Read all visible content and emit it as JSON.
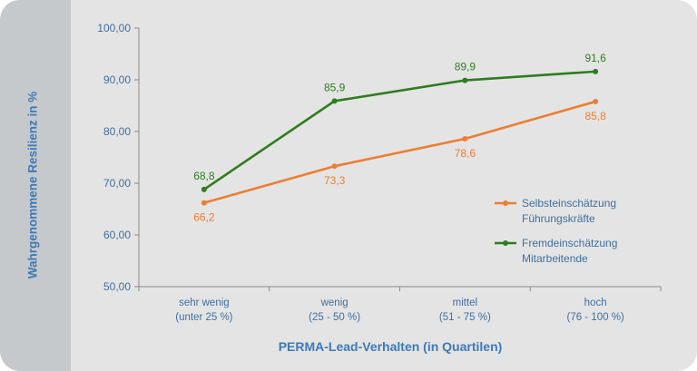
{
  "chart_data": {
    "type": "line",
    "xlabel": "PERMA-Lead-Verhalten (in Quartilen)",
    "ylabel": "Wahrgenommene Resilienz in %",
    "ylim": [
      50,
      100
    ],
    "yticks": [
      "50,00",
      "60,00",
      "70,00",
      "80,00",
      "90,00",
      "100,00"
    ],
    "categories": [
      [
        "sehr wenig",
        "(unter 25 %)"
      ],
      [
        "wenig",
        "(25 - 50 %)"
      ],
      [
        "mittel",
        "(51 - 75 %)"
      ],
      [
        "hoch",
        "(76 - 100 %)"
      ]
    ],
    "series": [
      {
        "name_lines": [
          "Selbsteinschätzung",
          "Führungskräfte"
        ],
        "color": "#ed7d31",
        "values": [
          66.2,
          73.3,
          78.6,
          85.8
        ],
        "labels": [
          "66,2",
          "73,3",
          "78,6",
          "85,8"
        ],
        "label_position": "below"
      },
      {
        "name_lines": [
          "Fremdeinschätzung",
          "Mitarbeitende"
        ],
        "color": "#2e7d1f",
        "values": [
          68.8,
          85.9,
          89.9,
          91.6
        ],
        "labels": [
          "68,8",
          "85,9",
          "89,9",
          "91,6"
        ],
        "label_position": "above"
      }
    ],
    "grid": false,
    "legend": "right"
  }
}
